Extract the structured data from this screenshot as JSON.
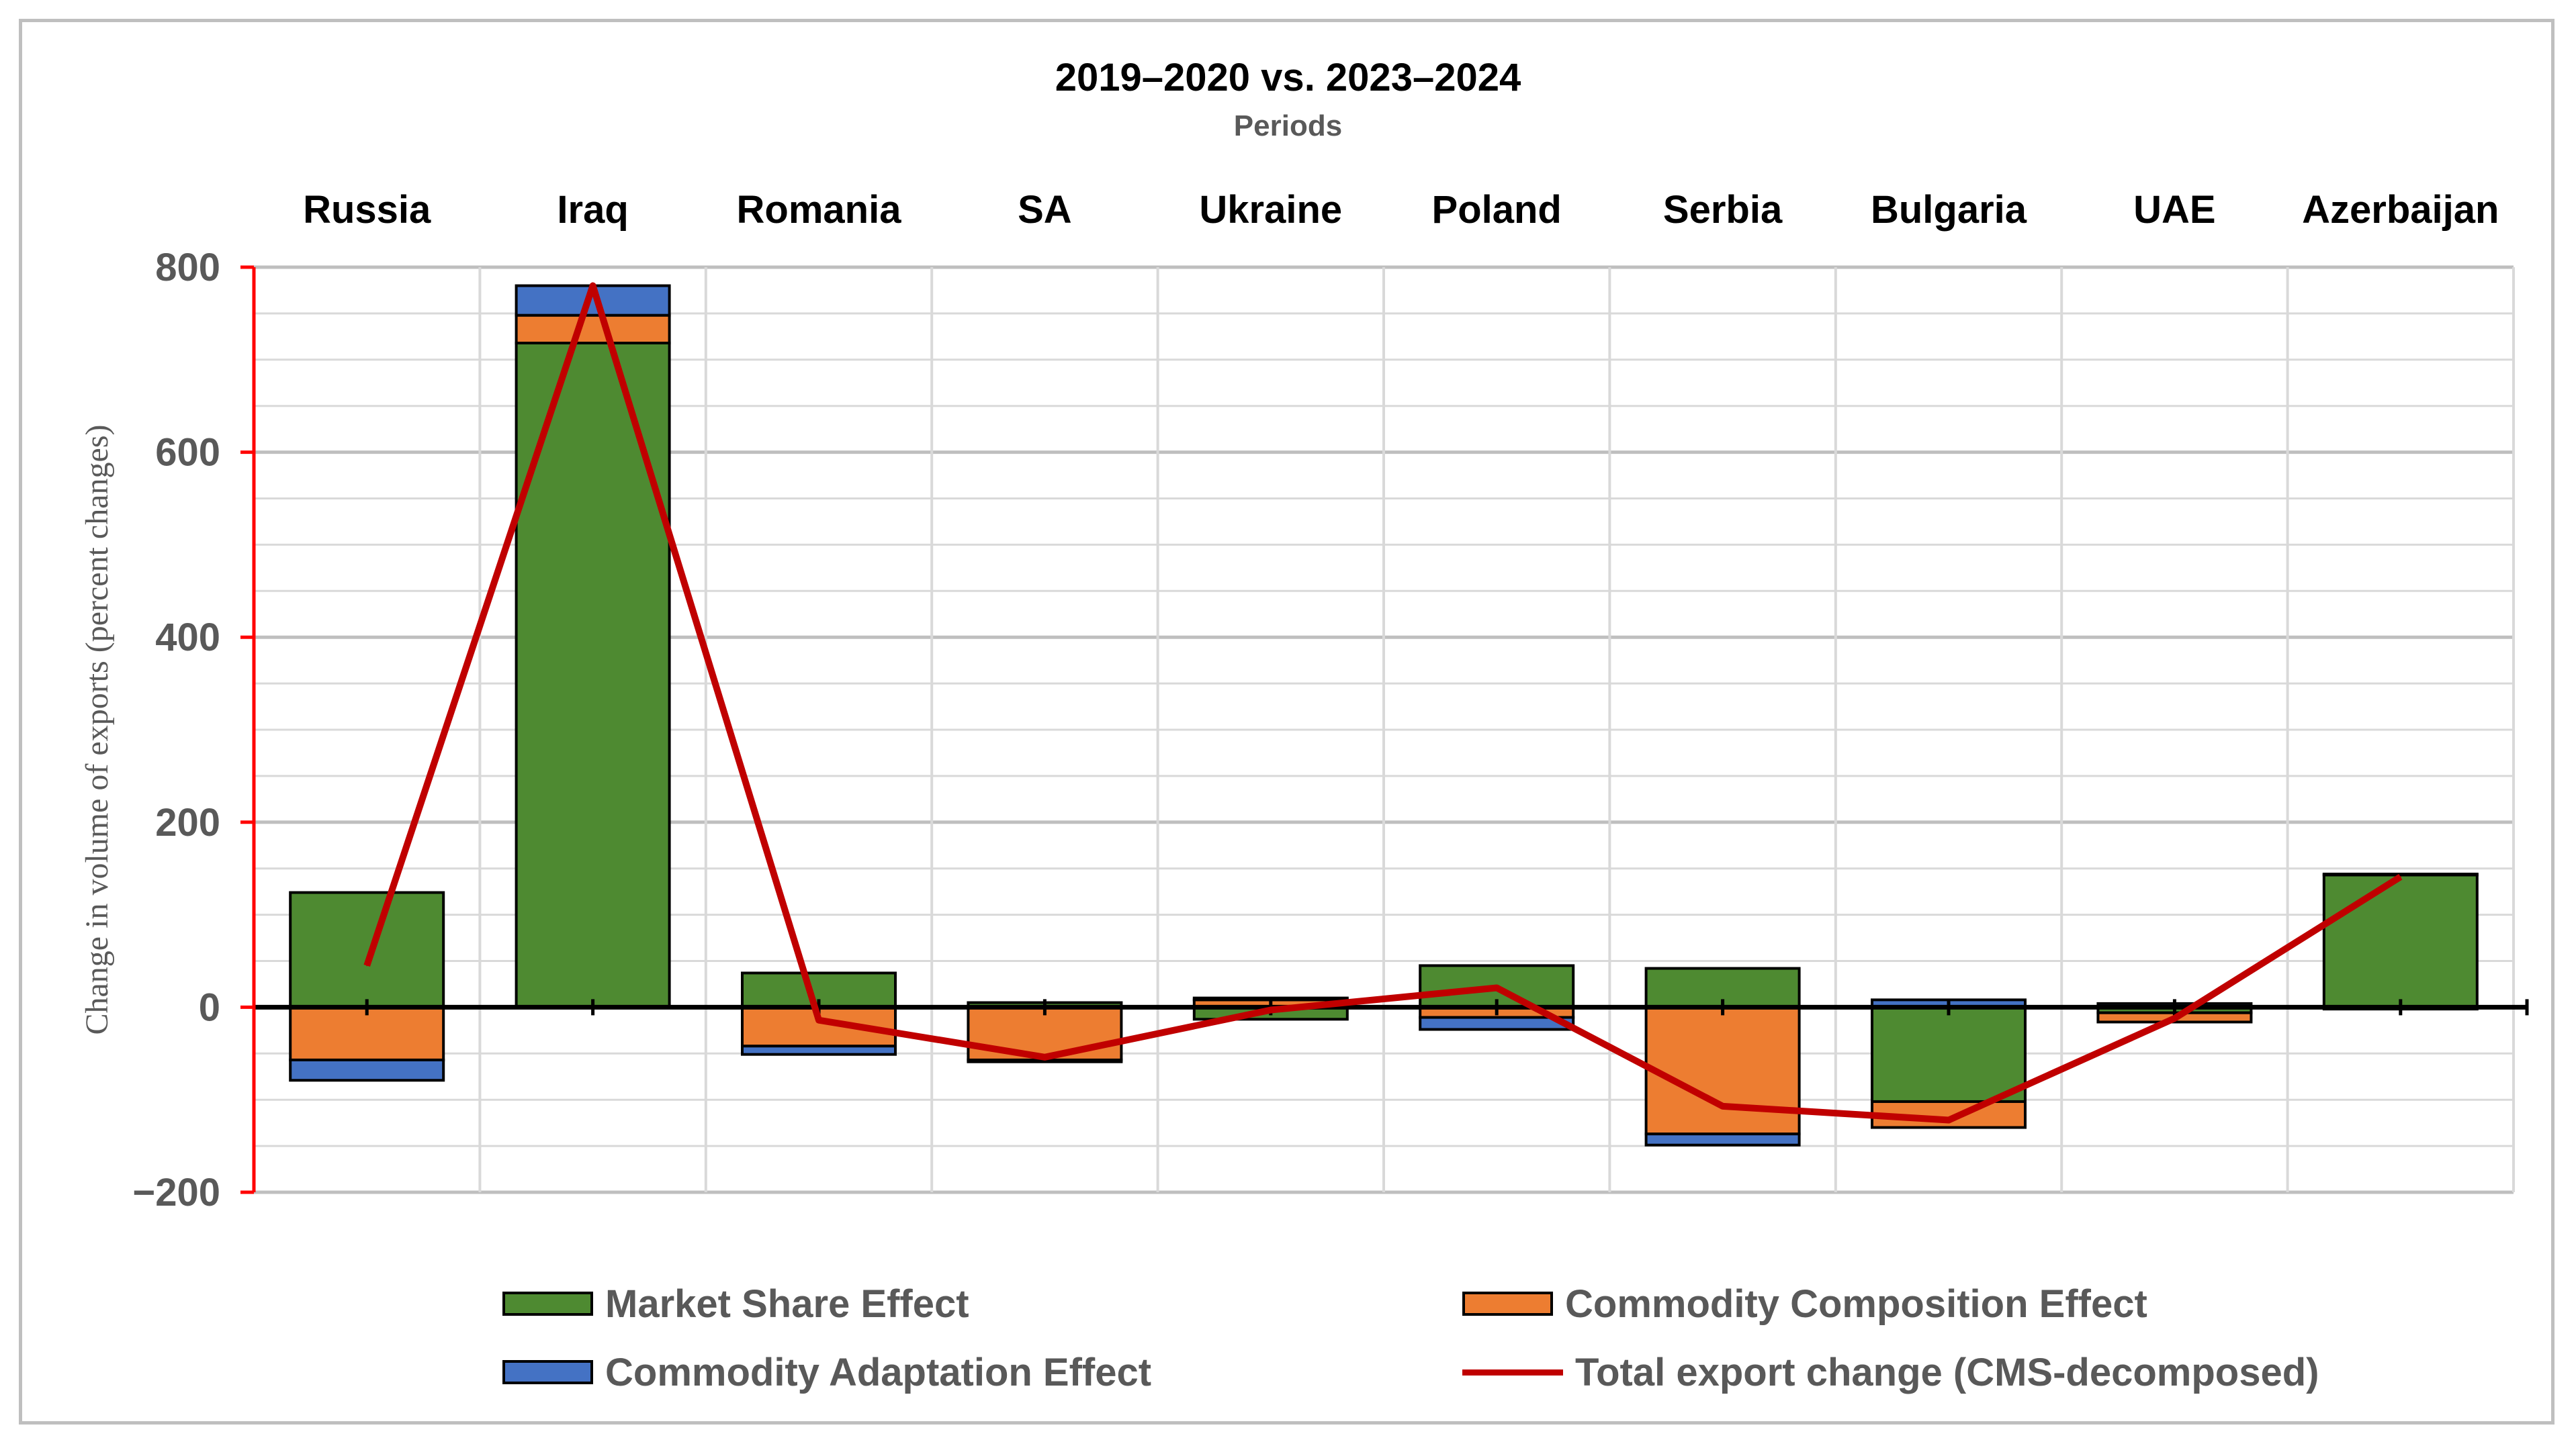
{
  "chart_data": {
    "type": "bar",
    "stacked": true,
    "title": "2019–2020 vs. 2023–2024",
    "subtitle": "Periods",
    "ylabel": "Change in volume of exports (percent changes)",
    "xlabel": "",
    "ylim": [
      -200,
      800
    ],
    "yticks": [
      800,
      600,
      400,
      200,
      0,
      -200
    ],
    "ytick_labels": [
      "800",
      "600",
      "400",
      "200",
      "0",
      "−200"
    ],
    "categories": [
      "Russia",
      "Iraq",
      "Romania",
      "SA",
      "Ukraine",
      "Poland",
      "Serbia",
      "Bulgaria",
      "UAE",
      "Azerbaijan"
    ],
    "series": [
      {
        "name": "Market Share Effect",
        "color": "#4e8a31",
        "kind": "bar",
        "values": [
          124,
          718,
          37,
          5,
          -13,
          45,
          42,
          -102,
          -6,
          143
        ]
      },
      {
        "name": "Commodity Composition Effect",
        "color": "#ed7d31",
        "kind": "bar",
        "values": [
          -57,
          30,
          -42,
          -57,
          8,
          -11,
          -137,
          -28,
          -10,
          -2
        ]
      },
      {
        "name": "Commodity Adaptation Effect",
        "color": "#4472c4",
        "kind": "bar",
        "values": [
          -22,
          32,
          -9,
          -2,
          2,
          -13,
          -12,
          8,
          4,
          1
        ]
      },
      {
        "name": "Total export change (CMS-decomposed)",
        "color": "#c00000",
        "kind": "line",
        "values": [
          45,
          780,
          -14,
          -54,
          -3,
          21,
          -107,
          -122,
          -12,
          141
        ]
      }
    ],
    "legend_position": "bottom",
    "grid": true
  }
}
